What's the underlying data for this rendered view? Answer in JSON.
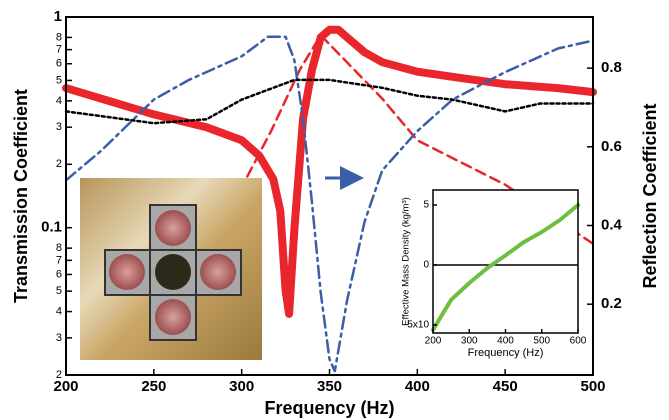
{
  "chart_data": [
    {
      "type": "line",
      "xlabel": "Frequency (Hz)",
      "ylabel": "Transmission Coefficient",
      "y2label": "Reflection Coefficient",
      "xlim": [
        200,
        500
      ],
      "xticks": [
        200,
        250,
        300,
        350,
        400,
        450,
        500
      ],
      "ylim": [
        0.02,
        1
      ],
      "ylog": true,
      "yticks": [
        1,
        {
          "value": 0.8,
          "label": "8"
        },
        {
          "value": 0.7,
          "label": "7"
        },
        {
          "value": 0.6,
          "label": "6"
        },
        {
          "value": 0.5,
          "label": "5"
        },
        {
          "value": 0.4,
          "label": "4"
        },
        {
          "value": 0.3,
          "label": "3"
        },
        {
          "value": 0.2,
          "label": "2"
        },
        0.1,
        {
          "value": 0.08,
          "label": "8"
        },
        {
          "value": 0.07,
          "label": "7"
        },
        {
          "value": 0.06,
          "label": "6"
        },
        {
          "value": 0.05,
          "label": "5"
        },
        {
          "value": 0.04,
          "label": "4"
        },
        {
          "value": 0.03,
          "label": "3"
        },
        {
          "value": 0.02,
          "label": "2"
        }
      ],
      "y2lim": [
        0.02,
        0.93
      ],
      "y2ticks": [
        0.2,
        0.4,
        0.6,
        0.8
      ],
      "series": [
        {
          "color": "#e8262b",
          "dash": "solid",
          "x": [
            200,
            250,
            280,
            300,
            310,
            318,
            322,
            325,
            327,
            330,
            335,
            340,
            345,
            350,
            355,
            360,
            370,
            380,
            400,
            420,
            450,
            480,
            500
          ],
          "values": [
            0.46,
            0.345,
            0.3,
            0.26,
            0.22,
            0.17,
            0.12,
            0.05,
            0.039,
            0.099,
            0.33,
            0.56,
            0.8,
            0.87,
            0.87,
            0.8,
            0.68,
            0.61,
            0.55,
            0.52,
            0.48,
            0.46,
            0.44
          ]
        },
        {
          "color": "#e8262b",
          "dash": "dashed",
          "x": [
            299,
            317,
            333,
            345,
            380,
            400,
            450,
            500
          ],
          "values": [
            0.15,
            0.29,
            0.56,
            0.82,
            0.41,
            0.26,
            0.16,
            0.084
          ]
        },
        {
          "color": "#3a5ea8",
          "dash": "dashdot",
          "axis": "y2",
          "x": [
            200,
            220,
            250,
            270,
            300,
            315,
            325,
            330,
            335,
            340,
            345,
            350,
            353,
            360,
            370,
            380,
            400,
            420,
            450,
            480,
            500
          ],
          "values": [
            0.515,
            0.59,
            0.72,
            0.77,
            0.83,
            0.88,
            0.88,
            0.82,
            0.67,
            0.46,
            0.23,
            0.06,
            0.03,
            0.21,
            0.41,
            0.54,
            0.64,
            0.72,
            0.79,
            0.85,
            0.87
          ]
        },
        {
          "color": "#000000",
          "dash": "dotted",
          "axis": "y2",
          "x": [
            200,
            250,
            280,
            300,
            330,
            350,
            380,
            400,
            420,
            450,
            470,
            500
          ],
          "values": [
            0.69,
            0.66,
            0.67,
            0.72,
            0.77,
            0.77,
            0.75,
            0.73,
            0.72,
            0.69,
            0.71,
            0.71
          ]
        }
      ]
    },
    {
      "type": "line",
      "xlabel": "Frequency (Hz)",
      "ylabel": "Effective Mass Density (kg/m³)",
      "xlim": [
        200,
        600
      ],
      "xticks": [
        200,
        300,
        400,
        500,
        600
      ],
      "ylim": [
        -5.67,
        6.25
      ],
      "yticks": [
        {
          "value": -5,
          "label": "-5x10"
        },
        0,
        5
      ],
      "series": [
        {
          "color": "#6cbf3f",
          "dash": "solid",
          "x": [
            200,
            250,
            300,
            350,
            400,
            450,
            500,
            550,
            600
          ],
          "values": [
            -5.4,
            -2.9,
            -1.5,
            -0.25,
            0.8,
            1.9,
            2.75,
            3.75,
            5
          ]
        }
      ]
    }
  ]
}
